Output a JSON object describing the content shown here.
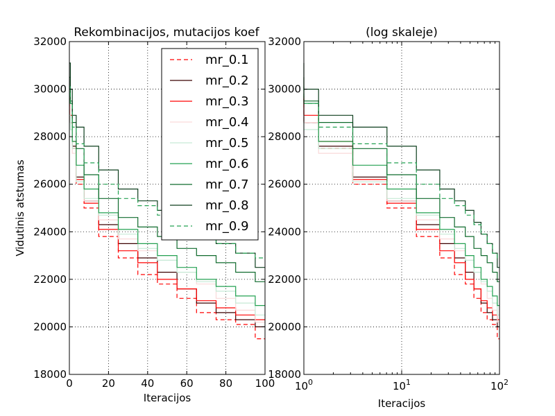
{
  "chart_data": [
    {
      "type": "line",
      "title": "Rekombinacijos, mutacijos koef",
      "xlabel": "Iteracijos",
      "ylabel": "Vidutinis atstumas",
      "xscale": "linear",
      "xlim": [
        0,
        100
      ],
      "ylim": [
        18000,
        32000
      ],
      "xticks": [
        "0",
        "20",
        "40",
        "60",
        "80",
        "100"
      ],
      "yticks": [
        "18000",
        "20000",
        "22000",
        "24000",
        "26000",
        "28000",
        "30000",
        "32000"
      ],
      "grid": true,
      "legend": "top-right",
      "x": [
        0,
        1,
        2,
        5,
        10,
        20,
        30,
        40,
        50,
        60,
        70,
        80,
        90,
        100
      ],
      "series": [
        {
          "name": "mr_0.1",
          "color": "#ff0000",
          "dash": "dashed",
          "values": [
            29700,
            28600,
            27500,
            26000,
            25000,
            23800,
            22900,
            22200,
            21800,
            21200,
            20600,
            20300,
            20100,
            19500
          ]
        },
        {
          "name": "mr_0.2",
          "color": "#3b0000",
          "dash": "solid",
          "values": [
            29600,
            28600,
            27600,
            26300,
            25300,
            24300,
            23500,
            22900,
            22300,
            21600,
            21000,
            20600,
            20300,
            20000
          ]
        },
        {
          "name": "mr_0.3",
          "color": "#ff0000",
          "dash": "solid",
          "values": [
            29600,
            28900,
            27800,
            26200,
            25200,
            24100,
            23200,
            22700,
            22000,
            21600,
            21100,
            20800,
            20500,
            20300
          ]
        },
        {
          "name": "mr_0.4",
          "color": "#f9d9d9",
          "dash": "solid",
          "values": [
            29900,
            28600,
            27300,
            26100,
            25300,
            24500,
            23700,
            23200,
            22800,
            22300,
            21800,
            21200,
            20700,
            20200
          ]
        },
        {
          "name": "mr_0.5",
          "color": "#c6ead6",
          "dash": "solid",
          "values": [
            28900,
            28300,
            27500,
            26100,
            25400,
            24700,
            23900,
            23300,
            22800,
            22300,
            21900,
            21500,
            21000,
            20500
          ]
        },
        {
          "name": "mr_0.6",
          "color": "#22a050",
          "dash": "solid",
          "values": [
            30000,
            29400,
            27800,
            26800,
            25800,
            24800,
            24100,
            23500,
            23000,
            22500,
            22000,
            21700,
            21300,
            20900
          ]
        },
        {
          "name": "mr_0.7",
          "color": "#0f6a2c",
          "dash": "solid",
          "values": [
            30500,
            29500,
            28600,
            27500,
            26400,
            25400,
            24600,
            24200,
            23800,
            23300,
            23000,
            22700,
            22300,
            21900
          ]
        },
        {
          "name": "mr_0.8",
          "color": "#0c3d1c",
          "dash": "solid",
          "values": [
            31100,
            30000,
            28900,
            28400,
            27600,
            26600,
            25800,
            25300,
            24900,
            24400,
            23900,
            23500,
            23100,
            22500
          ]
        },
        {
          "name": "mr_0.9",
          "color": "#22a050",
          "dash": "dashed",
          "values": [
            30100,
            29400,
            28400,
            27700,
            26900,
            26000,
            25400,
            25100,
            24700,
            24300,
            23900,
            23500,
            23100,
            22900
          ]
        }
      ]
    },
    {
      "type": "line",
      "title": "(log skaleje)",
      "xlabel": "Iteracijos",
      "ylabel": "",
      "xscale": "log",
      "xlim": [
        1,
        100
      ],
      "ylim": [
        18000,
        32000
      ],
      "xticks": [
        {
          "base": "10",
          "exp": "0"
        },
        {
          "base": "10",
          "exp": "1"
        },
        {
          "base": "10",
          "exp": "2"
        }
      ],
      "yticks": [
        "18000",
        "20000",
        "22000",
        "24000",
        "26000",
        "28000",
        "30000",
        "32000"
      ],
      "grid": true,
      "same_series_as": "left panel"
    }
  ]
}
